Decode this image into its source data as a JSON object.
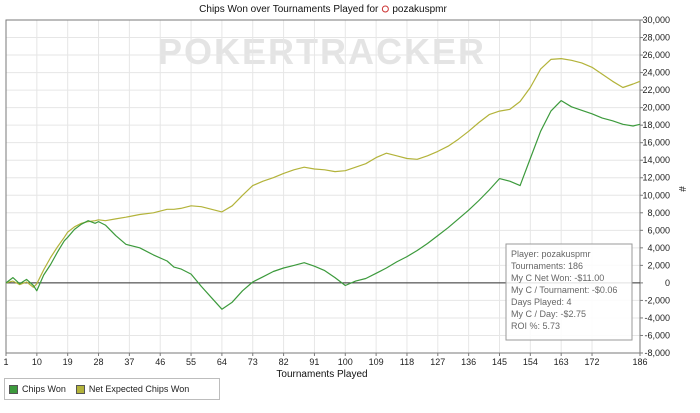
{
  "chart_data": {
    "type": "line",
    "title": "Chips Won over Tournaments Played for",
    "player_name": "pozakuspmr",
    "watermark": "POKERTRACKER",
    "xlabel": "Tournaments Played",
    "ylabel": "#",
    "xlim": [
      1,
      186
    ],
    "ylim": [
      -8000,
      30000
    ],
    "grid": true,
    "legend_position": "bottom-left",
    "x_ticks": [
      1,
      10,
      19,
      28,
      37,
      46,
      55,
      64,
      73,
      82,
      91,
      100,
      109,
      118,
      127,
      136,
      145,
      154,
      163,
      172,
      186
    ],
    "y_ticks": [
      30000,
      28000,
      26000,
      24000,
      22000,
      20000,
      18000,
      16000,
      14000,
      12000,
      10000,
      8000,
      6000,
      4000,
      2000,
      0,
      -2000,
      -4000,
      -6000,
      -8000
    ],
    "y_tick_labels": [
      "30,000",
      "28,000",
      "26,000",
      "24,000",
      "22,000",
      "20,000",
      "18,000",
      "16,000",
      "14,000",
      "12,000",
      "10,000",
      "8,000",
      "6,000",
      "4,000",
      "2,000",
      "0",
      "-2,000",
      "-4,000",
      "-6,000",
      "-8,000"
    ],
    "series": [
      {
        "name": "Chips Won",
        "color": "#3c9a3c",
        "x": [
          1,
          3,
          5,
          7,
          9,
          10,
          12,
          14,
          16,
          18,
          19,
          21,
          23,
          25,
          27,
          28,
          30,
          33,
          36,
          40,
          44,
          48,
          50,
          52,
          55,
          58,
          61,
          64,
          67,
          70,
          73,
          76,
          79,
          82,
          85,
          88,
          91,
          94,
          97,
          100,
          103,
          106,
          109,
          112,
          115,
          118,
          121,
          124,
          127,
          130,
          133,
          136,
          139,
          142,
          145,
          148,
          151,
          154,
          157,
          160,
          163,
          166,
          169,
          172,
          175,
          178,
          181,
          184,
          186
        ],
        "y": [
          0,
          600,
          -100,
          400,
          -300,
          -900,
          900,
          2100,
          3500,
          4800,
          5200,
          6100,
          6700,
          7100,
          6800,
          7000,
          6600,
          5400,
          4400,
          4000,
          3200,
          2500,
          1800,
          1600,
          1000,
          -400,
          -1700,
          -3000,
          -2200,
          -900,
          100,
          700,
          1300,
          1700,
          2000,
          2300,
          1900,
          1400,
          600,
          -300,
          200,
          500,
          1100,
          1700,
          2400,
          3000,
          3700,
          4500,
          5400,
          6300,
          7300,
          8300,
          9400,
          10600,
          11900,
          11600,
          11100,
          14200,
          17300,
          19600,
          20800,
          20100,
          19700,
          19300,
          18800,
          18500,
          18100,
          17900,
          18100
        ]
      },
      {
        "name": "Net Expected Chips Won",
        "color": "#b3b33a",
        "x": [
          1,
          3,
          5,
          7,
          9,
          10,
          12,
          14,
          16,
          18,
          19,
          21,
          23,
          25,
          27,
          28,
          30,
          33,
          36,
          40,
          44,
          48,
          50,
          52,
          55,
          58,
          61,
          64,
          67,
          70,
          73,
          76,
          79,
          82,
          85,
          88,
          91,
          94,
          97,
          100,
          103,
          106,
          109,
          112,
          115,
          118,
          121,
          124,
          127,
          130,
          133,
          136,
          139,
          142,
          145,
          148,
          151,
          154,
          157,
          160,
          163,
          166,
          169,
          172,
          175,
          178,
          181,
          184,
          186
        ],
        "y": [
          0,
          200,
          -200,
          100,
          -500,
          -100,
          1500,
          2900,
          4100,
          5200,
          5800,
          6400,
          6800,
          7000,
          7100,
          7200,
          7100,
          7300,
          7500,
          7800,
          8000,
          8400,
          8400,
          8500,
          8800,
          8700,
          8400,
          8100,
          8800,
          10000,
          11100,
          11600,
          12000,
          12500,
          12900,
          13200,
          13000,
          12900,
          12700,
          12800,
          13200,
          13600,
          14300,
          14800,
          14500,
          14200,
          14100,
          14500,
          15000,
          15600,
          16400,
          17300,
          18300,
          19200,
          19600,
          19800,
          20700,
          22300,
          24400,
          25500,
          25600,
          25400,
          25100,
          24600,
          23800,
          23000,
          22300,
          22700,
          23000
        ]
      }
    ],
    "info_box": [
      "Player: pozakuspmr",
      "Tournaments: 186",
      "My C Net Won: -$11.00",
      "My C / Tournament: -$0.06",
      "Days Played: 4",
      "My C / Day: -$2.75",
      "ROI %: 5.73"
    ],
    "info_box_position": "bottom-right"
  }
}
